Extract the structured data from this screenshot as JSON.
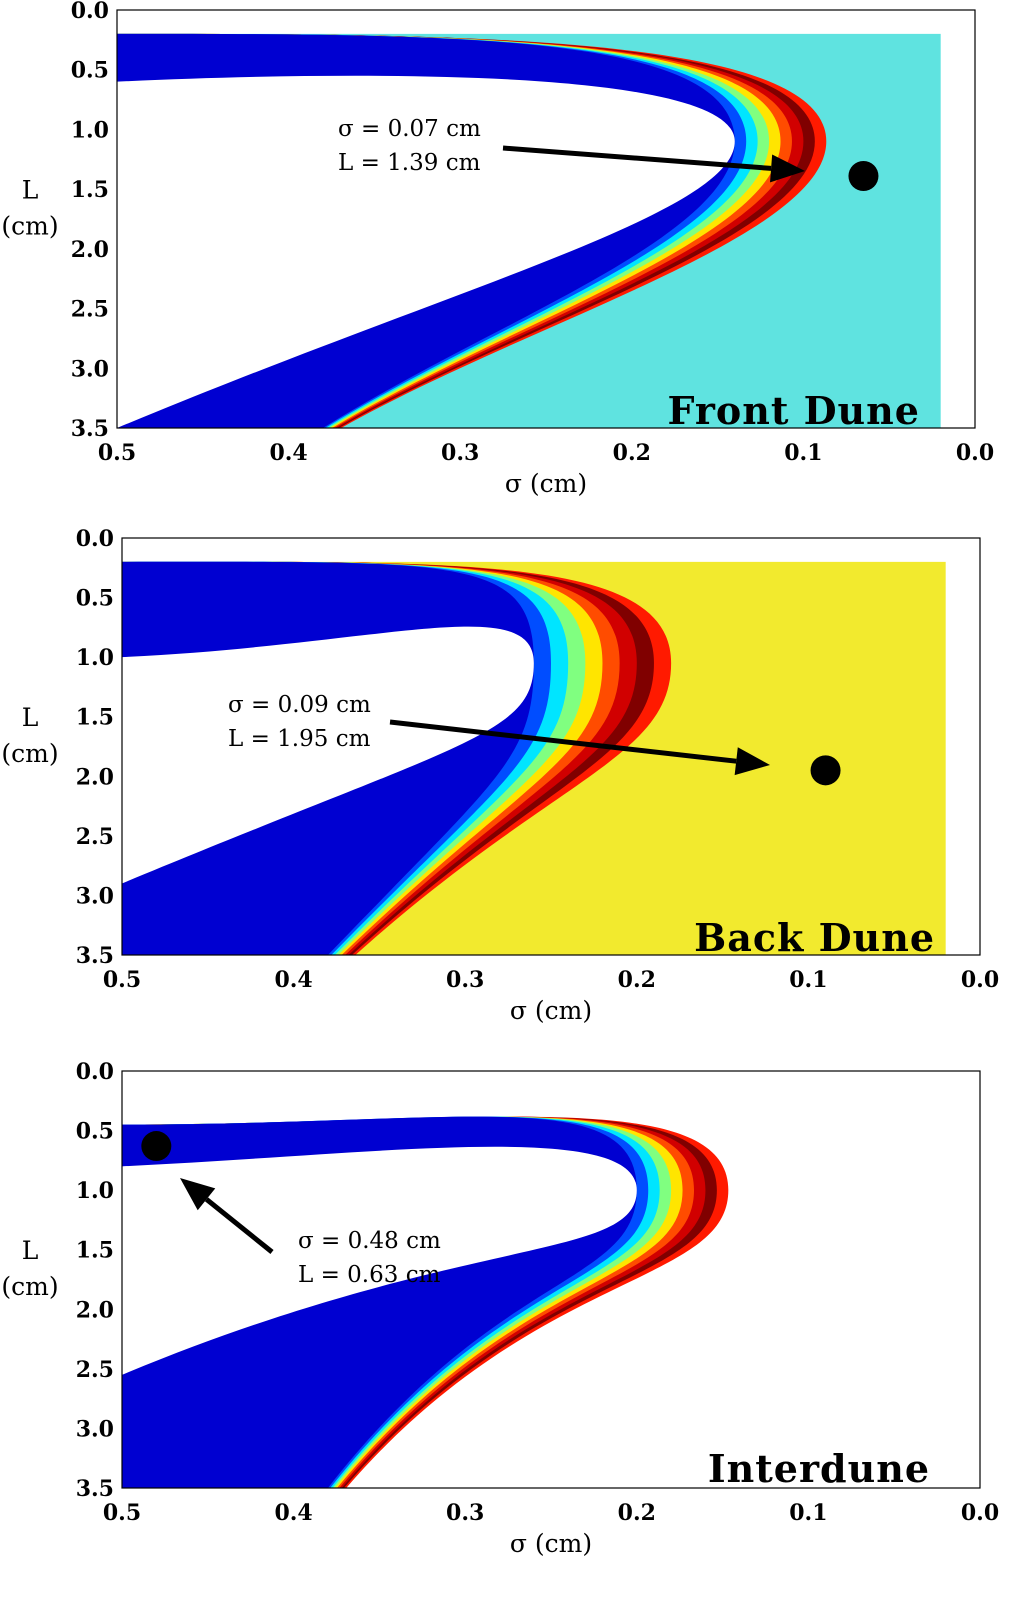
{
  "chart_data": [
    {
      "type": "heatmap",
      "title": "Front Dune",
      "xlabel": "σ (cm)",
      "ylabel_line1": "L",
      "ylabel_line2": "(cm)",
      "xlim": [
        0.5,
        0.0
      ],
      "ylim": [
        0.0,
        3.5
      ],
      "xticks": [
        "0.5",
        "0.4",
        "0.3",
        "0.2",
        "0.1",
        "0.0"
      ],
      "yticks": [
        "0.0",
        "0.5",
        "1.0",
        "1.5",
        "2.0",
        "2.5",
        "3.0",
        "3.5"
      ],
      "colormap": "jet",
      "optimum": {
        "sigma": 0.065,
        "L": 1.39
      },
      "annotation_line1": "σ = 0.07 cm",
      "annotation_line2": "L = 1.39 cm",
      "band": {
        "upper_start_L": 0.2,
        "upper_end_L": 0.6,
        "lower_start_L": 3.5,
        "lower_end_L": 2.6,
        "tip_sigma": 0.14,
        "tip_L": 1.1,
        "outer_sigma": 0.02,
        "width": 0.06,
        "background": "#5fe3e0"
      }
    },
    {
      "type": "heatmap",
      "title": "Back Dune",
      "xlabel": "σ (cm)",
      "ylabel_line1": "L",
      "ylabel_line2": "(cm)",
      "xlim": [
        0.5,
        0.0
      ],
      "ylim": [
        0.0,
        3.5
      ],
      "xticks": [
        "0.5",
        "0.4",
        "0.3",
        "0.2",
        "0.1",
        "0.0"
      ],
      "yticks": [
        "0.0",
        "0.5",
        "1.0",
        "1.5",
        "2.0",
        "2.5",
        "3.0",
        "3.5"
      ],
      "colormap": "jet",
      "optimum": {
        "sigma": 0.09,
        "L": 1.95
      },
      "annotation_line1": "σ = 0.09 cm",
      "annotation_line2": "L = 1.95 cm",
      "band": {
        "upper_start_L": 0.2,
        "upper_end_L": 1.0,
        "lower_start_L": 3.5,
        "lower_end_L": 2.0,
        "tip_sigma": 0.26,
        "tip_L": 1.05,
        "outer_sigma": 0.02,
        "width": 0.09,
        "background": "#f2ea2e"
      }
    },
    {
      "type": "heatmap",
      "title": "Interdune",
      "xlabel": "σ (cm)",
      "ylabel_line1": "L",
      "ylabel_line2": "(cm)",
      "xlim": [
        0.5,
        0.0
      ],
      "ylim": [
        0.0,
        3.5
      ],
      "xticks": [
        "0.5",
        "0.4",
        "0.3",
        "0.2",
        "0.1",
        "0.0"
      ],
      "yticks": [
        "0.0",
        "0.5",
        "1.0",
        "1.5",
        "2.0",
        "2.5",
        "3.0",
        "3.5"
      ],
      "colormap": "jet",
      "optimum": {
        "sigma": 0.48,
        "L": 0.63
      },
      "annotation_line1": "σ = 0.48 cm",
      "annotation_line2": "L = 0.63 cm",
      "band": {
        "upper_start_L": 0.45,
        "upper_end_L": 0.8,
        "lower_start_L": 3.5,
        "lower_end_L": 1.65,
        "tip_sigma": 0.2,
        "tip_L": 1.0,
        "outer_sigma": 0.1,
        "width": 0.06,
        "background": "#ffffff"
      }
    }
  ]
}
